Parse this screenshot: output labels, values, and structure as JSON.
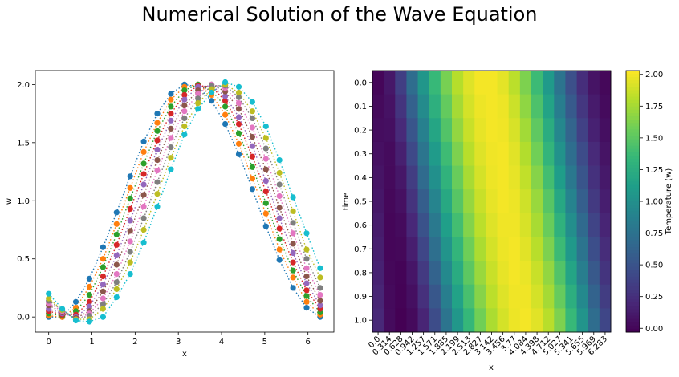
{
  "figure": {
    "suptitle": "Numerical Solution of the  Wave Equation"
  },
  "chart_data": [
    {
      "type": "scatter",
      "style": "markers connected by dotted lines, one series per time step",
      "xlabel": "x",
      "ylabel": "w",
      "xlim": [
        -0.31,
        6.6
      ],
      "ylim": [
        -0.13,
        2.12
      ],
      "xticks": [
        "0",
        "1",
        "2",
        "3",
        "4",
        "5",
        "6"
      ],
      "yticks": [
        "0.0",
        "0.5",
        "1.0",
        "1.5",
        "2.0"
      ],
      "grid": false,
      "x": [
        0.0,
        0.314,
        0.628,
        0.942,
        1.257,
        1.571,
        1.885,
        2.199,
        2.513,
        2.827,
        3.142,
        3.456,
        3.77,
        4.084,
        4.398,
        4.712,
        5.027,
        5.341,
        5.655,
        5.969,
        6.283
      ],
      "series": [
        {
          "color": "#1f77b4",
          "values": [
            0.0,
            0.0,
            0.13,
            0.33,
            0.6,
            0.9,
            1.21,
            1.51,
            1.75,
            1.92,
            2.0,
            1.98,
            1.86,
            1.66,
            1.4,
            1.1,
            0.78,
            0.49,
            0.25,
            0.08,
            0.0
          ]
        },
        {
          "color": "#ff7f0e",
          "values": [
            0.01,
            0.0,
            0.08,
            0.26,
            0.5,
            0.8,
            1.11,
            1.42,
            1.67,
            1.87,
            1.98,
            2.0,
            1.91,
            1.74,
            1.49,
            1.19,
            0.89,
            0.58,
            0.34,
            0.13,
            0.02
          ]
        },
        {
          "color": "#2ca02c",
          "values": [
            0.03,
            0.01,
            0.05,
            0.19,
            0.43,
            0.71,
            1.02,
            1.32,
            1.6,
            1.81,
            1.95,
            2.0,
            1.95,
            1.81,
            1.58,
            1.29,
            0.98,
            0.67,
            0.4,
            0.18,
            0.04
          ]
        },
        {
          "color": "#d62728",
          "values": [
            0.05,
            0.02,
            0.02,
            0.13,
            0.35,
            0.62,
            0.93,
            1.23,
            1.52,
            1.75,
            1.91,
            1.99,
            1.98,
            1.86,
            1.66,
            1.38,
            1.08,
            0.76,
            0.47,
            0.23,
            0.07
          ]
        },
        {
          "color": "#9467bd",
          "values": [
            0.07,
            0.03,
            0.0,
            0.09,
            0.28,
            0.53,
            0.83,
            1.14,
            1.44,
            1.69,
            1.87,
            1.98,
            1.99,
            1.9,
            1.72,
            1.47,
            1.17,
            0.85,
            0.55,
            0.29,
            0.1
          ]
        },
        {
          "color": "#8c564b",
          "values": [
            0.1,
            0.04,
            -0.01,
            0.05,
            0.22,
            0.45,
            0.74,
            1.05,
            1.35,
            1.62,
            1.82,
            1.95,
            2.0,
            1.94,
            1.79,
            1.55,
            1.27,
            0.94,
            0.63,
            0.35,
            0.14
          ]
        },
        {
          "color": "#e377c2",
          "values": [
            0.12,
            0.05,
            -0.02,
            0.03,
            0.16,
            0.37,
            0.65,
            0.95,
            1.26,
            1.54,
            1.77,
            1.92,
            2.0,
            1.97,
            1.84,
            1.63,
            1.36,
            1.04,
            0.72,
            0.42,
            0.19
          ]
        },
        {
          "color": "#7f7f7f",
          "values": [
            0.14,
            0.06,
            -0.02,
            0.01,
            0.11,
            0.3,
            0.56,
            0.85,
            1.16,
            1.46,
            1.71,
            1.88,
            1.99,
            1.99,
            1.89,
            1.71,
            1.45,
            1.14,
            0.81,
            0.5,
            0.25
          ]
        },
        {
          "color": "#bcbd22",
          "values": [
            0.16,
            0.06,
            -0.02,
            -0.02,
            0.07,
            0.24,
            0.47,
            0.75,
            1.06,
            1.37,
            1.64,
            1.84,
            1.96,
            2.0,
            1.93,
            1.77,
            1.54,
            1.24,
            0.91,
            0.58,
            0.34
          ]
        },
        {
          "color": "#17becf",
          "values": [
            0.2,
            0.07,
            -0.03,
            -0.04,
            0.0,
            0.17,
            0.37,
            0.64,
            0.95,
            1.27,
            1.57,
            1.79,
            1.93,
            2.02,
            1.98,
            1.85,
            1.64,
            1.35,
            1.03,
            0.72,
            0.42
          ]
        }
      ]
    },
    {
      "type": "heatmap",
      "xlabel": "x",
      "ylabel": "time",
      "colorbar_label": "Temperature (w)",
      "colormap": "viridis",
      "vmin": -0.03,
      "vmax": 2.03,
      "colorbar_ticks": [
        "0.00",
        "0.25",
        "0.50",
        "0.75",
        "1.00",
        "1.25",
        "1.50",
        "1.75",
        "2.00"
      ],
      "x_tick_labels": [
        "0.0",
        "0.314",
        "0.628",
        "0.942",
        "1.257",
        "1.571",
        "1.885",
        "2.199",
        "2.513",
        "2.827",
        "3.142",
        "3.456",
        "3.77",
        "4.084",
        "4.398",
        "4.712",
        "5.027",
        "5.341",
        "5.655",
        "5.969",
        "6.283"
      ],
      "y_tick_labels": [
        "0.0",
        "0.1",
        "0.2",
        "0.3",
        "0.4",
        "0.5",
        "0.6",
        "0.7",
        "0.8",
        "0.9",
        "1.0"
      ],
      "x_values": [
        0.0,
        0.314,
        0.628,
        0.942,
        1.257,
        1.571,
        1.885,
        2.199,
        2.513,
        2.827,
        3.142,
        3.456,
        3.77,
        4.084,
        4.398,
        4.712,
        5.027,
        5.341,
        5.655,
        5.969,
        6.283
      ],
      "time_values": [
        0.0,
        0.1,
        0.2,
        0.3,
        0.4,
        0.5,
        0.6,
        0.7,
        0.8,
        0.9,
        1.0
      ],
      "values": [
        [
          0.0,
          0.1,
          0.35,
          0.7,
          1.05,
          1.35,
          1.6,
          1.8,
          1.93,
          2.0,
          2.0,
          1.95,
          1.82,
          1.62,
          1.37,
          1.08,
          0.76,
          0.47,
          0.24,
          0.08,
          0.01
        ],
        [
          0.02,
          0.07,
          0.28,
          0.6,
          0.96,
          1.27,
          1.53,
          1.75,
          1.9,
          1.98,
          2.0,
          1.98,
          1.87,
          1.68,
          1.44,
          1.16,
          0.84,
          0.55,
          0.3,
          0.12,
          0.03
        ],
        [
          0.04,
          0.05,
          0.21,
          0.51,
          0.87,
          1.18,
          1.46,
          1.69,
          1.86,
          1.96,
          2.0,
          1.99,
          1.91,
          1.74,
          1.51,
          1.24,
          0.93,
          0.63,
          0.37,
          0.16,
          0.05
        ],
        [
          0.06,
          0.03,
          0.15,
          0.42,
          0.77,
          1.09,
          1.38,
          1.62,
          1.81,
          1.93,
          1.99,
          2.0,
          1.94,
          1.79,
          1.58,
          1.32,
          1.02,
          0.71,
          0.44,
          0.21,
          0.08
        ],
        [
          0.08,
          0.02,
          0.1,
          0.34,
          0.68,
          1.0,
          1.3,
          1.55,
          1.76,
          1.9,
          1.98,
          2.0,
          1.96,
          1.84,
          1.65,
          1.4,
          1.11,
          0.8,
          0.51,
          0.26,
          0.11
        ],
        [
          0.1,
          0.01,
          0.06,
          0.27,
          0.58,
          0.9,
          1.21,
          1.48,
          1.7,
          1.86,
          1.96,
          2.0,
          1.98,
          1.88,
          1.71,
          1.48,
          1.2,
          0.89,
          0.59,
          0.32,
          0.14
        ],
        [
          0.12,
          0.0,
          0.03,
          0.2,
          0.49,
          0.81,
          1.12,
          1.4,
          1.64,
          1.82,
          1.93,
          1.99,
          1.99,
          1.91,
          1.76,
          1.55,
          1.29,
          0.98,
          0.67,
          0.39,
          0.18
        ],
        [
          0.14,
          0.0,
          0.01,
          0.14,
          0.4,
          0.72,
          1.03,
          1.32,
          1.57,
          1.77,
          1.9,
          1.98,
          2.0,
          1.94,
          1.81,
          1.62,
          1.37,
          1.07,
          0.76,
          0.46,
          0.23
        ],
        [
          0.16,
          0.01,
          -0.01,
          0.09,
          0.32,
          0.62,
          0.94,
          1.23,
          1.5,
          1.71,
          1.86,
          1.96,
          2.0,
          1.97,
          1.86,
          1.69,
          1.46,
          1.17,
          0.85,
          0.54,
          0.28
        ],
        [
          0.18,
          0.02,
          -0.02,
          0.05,
          0.25,
          0.53,
          0.85,
          1.15,
          1.42,
          1.65,
          1.82,
          1.93,
          1.99,
          1.99,
          1.9,
          1.75,
          1.54,
          1.26,
          0.94,
          0.62,
          0.34
        ],
        [
          0.2,
          0.03,
          -0.03,
          0.02,
          0.18,
          0.44,
          0.76,
          1.06,
          1.34,
          1.58,
          1.77,
          1.9,
          1.98,
          2.0,
          1.94,
          1.81,
          1.62,
          1.35,
          1.03,
          0.7,
          0.4
        ]
      ]
    }
  ]
}
